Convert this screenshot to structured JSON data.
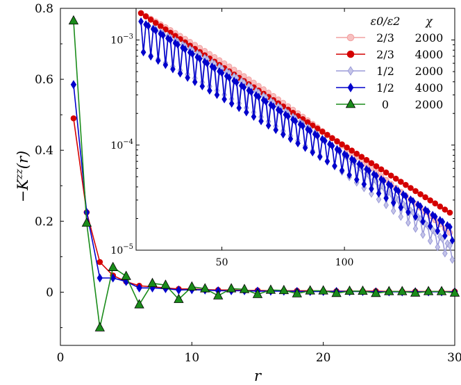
{
  "chart_data": [
    {
      "type": "line",
      "role": "main",
      "xlabel": "r",
      "ylabel": "−K^{zz}(r)",
      "ylabel_parts": {
        "prefix": "−K",
        "sup": "zz",
        "suffix": "(r)"
      },
      "xlim": [
        0,
        30
      ],
      "ylim": [
        -0.15,
        0.8
      ],
      "xticks": [
        0,
        10,
        20,
        30
      ],
      "yticks": [
        0,
        0.2,
        0.4,
        0.6,
        0.8
      ],
      "xtick_labels": [
        "0",
        "10",
        "20",
        "30"
      ],
      "ytick_labels": [
        "0",
        "0.2",
        "0.4",
        "0.6",
        "0.8"
      ],
      "series": [
        {
          "name": "ε0/ε2 = 2/3, χ = 4000",
          "color": "#d40000",
          "marker": "circle",
          "x": [
            1,
            2,
            3,
            4,
            5,
            6,
            7,
            8,
            9,
            10,
            11,
            12,
            13,
            14,
            15,
            16,
            17,
            18,
            19,
            20,
            21,
            22,
            23,
            24,
            25,
            26,
            27,
            28,
            29,
            30
          ],
          "y": [
            0.49,
            0.225,
            0.085,
            0.047,
            0.03,
            0.018,
            0.015,
            0.012,
            0.009,
            0.009,
            0.007,
            0.006,
            0.006,
            0.005,
            0.005,
            0.004,
            0.004,
            0.004,
            0.004,
            0.003,
            0.003,
            0.003,
            0.003,
            0.003,
            0.002,
            0.002,
            0.002,
            0.002,
            0.002,
            0.002
          ]
        },
        {
          "name": "ε0/ε2 = 1/2, χ = 4000",
          "color": "#0000cc",
          "marker": "diamond",
          "x": [
            1,
            2,
            3,
            4,
            5,
            6,
            7,
            8,
            9,
            10,
            11,
            12,
            13,
            14,
            15,
            16,
            17,
            18,
            19,
            20,
            21,
            22,
            23,
            24,
            25,
            26,
            27,
            28,
            29,
            30
          ],
          "y": [
            0.585,
            0.225,
            0.04,
            0.04,
            0.03,
            0.012,
            0.012,
            0.01,
            0.006,
            0.007,
            0.006,
            0.004,
            0.004,
            0.004,
            0.003,
            0.003,
            0.003,
            0.002,
            0.002,
            0.002,
            0.002,
            0.002,
            0.002,
            0.001,
            0.001,
            0.001,
            0.001,
            0.001,
            0.001,
            0.001
          ]
        },
        {
          "name": "ε0/ε2 = 0, χ = 2000",
          "color": "#1a8c1a",
          "marker": "triangle",
          "x": [
            1,
            2,
            3,
            4,
            5,
            6,
            7,
            8,
            9,
            10,
            11,
            12,
            13,
            14,
            15,
            16,
            17,
            18,
            19,
            20,
            21,
            22,
            23,
            24,
            25,
            26,
            27,
            28,
            29,
            30
          ],
          "y": [
            0.765,
            0.195,
            -0.1,
            0.07,
            0.045,
            -0.035,
            0.025,
            0.02,
            -0.02,
            0.015,
            0.01,
            -0.01,
            0.01,
            0.008,
            -0.006,
            0.006,
            0.005,
            -0.004,
            0.004,
            0.004,
            -0.003,
            0.003,
            0.003,
            -0.003,
            0.002,
            0.002,
            -0.002,
            0.002,
            0.002,
            -0.002
          ]
        }
      ]
    },
    {
      "type": "line",
      "role": "inset",
      "yscale": "log",
      "xlim": [
        15,
        145
      ],
      "ylim": [
        1e-05,
        0.002
      ],
      "xticks": [
        50,
        100
      ],
      "xtick_labels": [
        "50",
        "100"
      ],
      "yticks": [
        1e-05,
        0.0001,
        0.001
      ],
      "ytick_labels": [
        {
          "base": "10",
          "exp": "−5"
        },
        {
          "base": "10",
          "exp": "−4"
        },
        {
          "base": "10",
          "exp": "−3"
        }
      ],
      "legend": {
        "position": "top-right",
        "header": [
          "ε0/ε2",
          "χ"
        ],
        "entries": [
          {
            "ratio": "2/3",
            "chi": "2000"
          },
          {
            "ratio": "2/3",
            "chi": "4000"
          },
          {
            "ratio": "1/2",
            "chi": "2000"
          },
          {
            "ratio": "1/2",
            "chi": "4000"
          },
          {
            "ratio": "0",
            "chi": "2000"
          }
        ]
      },
      "series": [
        {
          "name": "2/3, 2000",
          "color": "#f2a0a0",
          "marker_fill": "#f7c0c0",
          "marker": "circle",
          "start": 17,
          "end": 144,
          "step": 2,
          "y_start": 0.0018,
          "y_end": 1.4e-05,
          "curve": 0.35,
          "zigzag": 0
        },
        {
          "name": "2/3, 4000",
          "color": "#d40000",
          "marker_fill": "#d40000",
          "marker": "circle",
          "start": 17,
          "end": 144,
          "step": 2,
          "y_start": 0.0018,
          "y_end": 2.2e-05,
          "curve": -0.05,
          "zigzag": 0
        },
        {
          "name": "1/2, 2000",
          "color": "#9a9ad8",
          "marker_fill": "#c4c4e8",
          "marker": "diamond",
          "start": 17,
          "end": 144,
          "step": 1,
          "y_start": 0.0015,
          "y_end": 1.05e-05,
          "curve": 0.45,
          "zigzag": 0.28
        },
        {
          "name": "1/2, 4000",
          "color": "#0000cc",
          "marker_fill": "#0000cc",
          "marker": "diamond",
          "start": 17,
          "end": 144,
          "step": 1,
          "y_start": 0.0015,
          "y_end": 1.6e-05,
          "curve": 0.1,
          "zigzag": 0.28
        }
      ]
    }
  ]
}
